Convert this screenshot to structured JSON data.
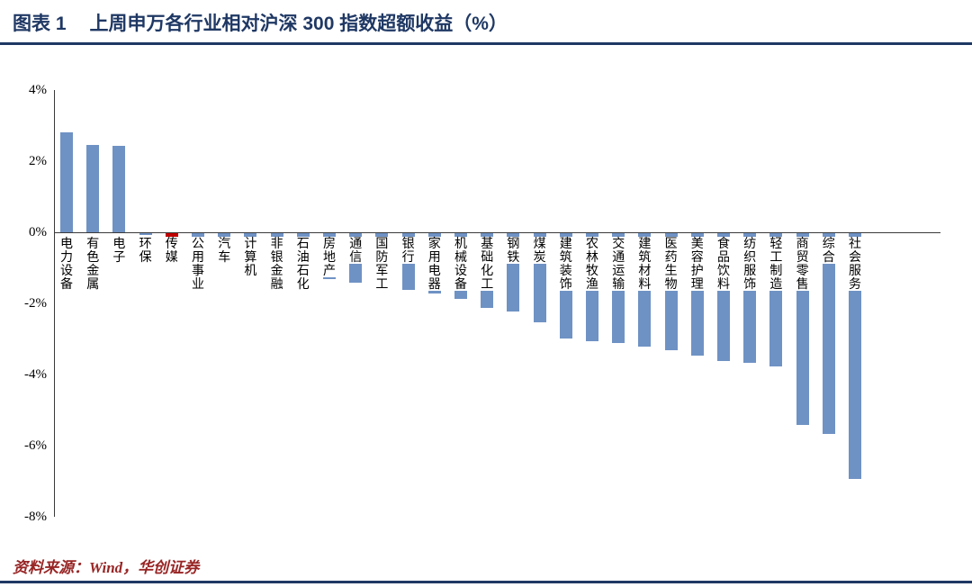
{
  "header": {
    "figure_label": "图表 1",
    "title": "上周申万各行业相对沪深 300 指数超额收益（%）"
  },
  "footer": {
    "source": "资料来源：Wind，华创证券"
  },
  "colors": {
    "accent_navy": "#1F3864",
    "bar_blue": "#6F92C4",
    "bar_highlight_red": "#C00000",
    "source_text": "#982525"
  },
  "chart_data": {
    "type": "bar",
    "title": "上周申万各行业相对沪深 300 指数超额收益（%）",
    "xlabel": "",
    "ylabel": "",
    "ylim": [
      -8,
      4
    ],
    "grid": false,
    "legend": "none",
    "yticks": [
      "4%",
      "2%",
      "0%",
      "-2%",
      "-4%",
      "-6%",
      "-8%"
    ],
    "ytick_values": [
      4,
      2,
      0,
      -2,
      -4,
      -6,
      -8
    ],
    "bar_color": "#6F92C4",
    "highlight_color": "#C00000",
    "highlight_index": 4,
    "highlight_category": "传媒",
    "categories": [
      "电力设备",
      "有色金属",
      "电子",
      "环保",
      "传媒",
      "公用事业",
      "汽车",
      "计算机",
      "非银金融",
      "石油石化",
      "房地产",
      "通信",
      "国防军工",
      "银行",
      "家用电器",
      "机械设备",
      "基础化工",
      "钢铁",
      "煤炭",
      "建筑装饰",
      "农林牧渔",
      "交通运输",
      "建筑材料",
      "医药生物",
      "美容护理",
      "食品饮料",
      "纺织服饰",
      "轻工制造",
      "商贸零售",
      "综合",
      "社会服务"
    ],
    "values": [
      2.8,
      2.45,
      2.43,
      -0.05,
      -0.33,
      -0.6,
      -0.75,
      -0.9,
      -1.05,
      -1.2,
      -1.3,
      -1.4,
      -1.5,
      -1.6,
      -1.7,
      -1.85,
      -2.1,
      -2.2,
      -2.5,
      -2.95,
      -3.05,
      -3.1,
      -3.2,
      -3.3,
      -3.45,
      -3.6,
      -3.65,
      -3.75,
      -5.4,
      -5.65,
      -6.9
    ]
  }
}
